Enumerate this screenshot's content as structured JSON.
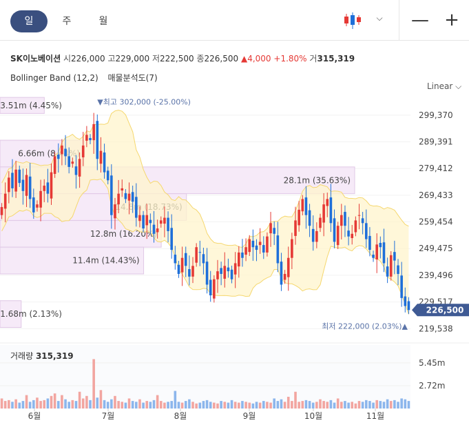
{
  "tabs": {
    "day": "일",
    "week": "주",
    "month": "월"
  },
  "icons": {
    "chart_type": "candlestick-icon",
    "dropdown": "chevron-down-icon",
    "zoom_out": "minus-icon",
    "zoom_in": "plus-icon"
  },
  "controls": {
    "zoom_out": "—",
    "zoom_in": "+",
    "chevron": "⌵"
  },
  "stock": {
    "name": "SK이노베이션",
    "open_label": "시",
    "open": "226,000",
    "high_label": "고",
    "high": "229,000",
    "low_label": "저",
    "low": "222,500",
    "close_label": "종",
    "close": "226,500",
    "change": "▲4,000",
    "change_pct": "+1.80%",
    "volume_label": "거",
    "volume": "315,319"
  },
  "indicators": {
    "bollinger": "Bollinger Band (12,2)",
    "volume_profile": "매물분석도(7)"
  },
  "scale_mode": "Linear ⌵",
  "colors": {
    "up": "#e53935",
    "down": "#1e6fd9",
    "band_fill": "#fff4cc",
    "band_line": "#f5d76e",
    "profile_fill": "#f4e6f7",
    "profile_line": "#e0c8e6",
    "price_tag": "#3f5a94"
  },
  "chart_data": {
    "type": "candlestick",
    "y_ticks": [
      299370,
      289391,
      279412,
      269433,
      259454,
      249475,
      239496,
      229517,
      219538
    ],
    "ylim": [
      216000,
      305000
    ],
    "x_labels": [
      "6월",
      "7월",
      "8월",
      "9월",
      "10월",
      "11월"
    ],
    "last_price": "226,500",
    "last_price_value": 226500,
    "high_marker": {
      "label": "▼최고 302,000 (-25.00%)",
      "value": 302000,
      "month_index": 1.1
    },
    "low_marker": {
      "label": "최저 222,000 (2.03%)▲",
      "value": 222000
    },
    "volume_profile": [
      {
        "low": 300000,
        "high": 306000,
        "label": "3.51m (4.45%)",
        "share": 4.45
      },
      {
        "low": 280000,
        "high": 290000,
        "label": "6.66m (8.44%)",
        "share": 8.44
      },
      {
        "low": 270000,
        "high": 280000,
        "label": "28.1m (35.63%)",
        "share": 35.63
      },
      {
        "low": 260000,
        "high": 270000,
        "label": "14.8m (18.73%)",
        "share": 18.73
      },
      {
        "low": 250000,
        "high": 260000,
        "label": "12.8m (16.20%)",
        "share": 16.2
      },
      {
        "low": 240000,
        "high": 250000,
        "label": "11.4m (14.43%)",
        "share": 14.43
      },
      {
        "low": 220000,
        "high": 230000,
        "label": "1.68m (2.13%)",
        "share": 2.13
      }
    ],
    "volume_title": "거래량",
    "volume_value": "315,319",
    "volume_ticks": [
      {
        "label": "5.45m",
        "value": 5450000
      },
      {
        "label": "2.72m",
        "value": 2720000
      }
    ],
    "volume_max": 6100000,
    "closes": [
      265000,
      270000,
      276000,
      272000,
      279000,
      274000,
      271000,
      277000,
      268000,
      263000,
      266000,
      271000,
      273000,
      270000,
      278000,
      284000,
      283000,
      288000,
      284000,
      280000,
      282000,
      277000,
      283000,
      288000,
      292000,
      290000,
      296000,
      283000,
      286000,
      278000,
      275000,
      262000,
      266000,
      270000,
      272000,
      268000,
      270000,
      267000,
      261000,
      262000,
      257000,
      262000,
      259000,
      255000,
      257000,
      260000,
      261000,
      256000,
      249000,
      244000,
      240000,
      246000,
      243000,
      239000,
      243000,
      250000,
      248000,
      244000,
      236000,
      232000,
      238000,
      241000,
      240000,
      243000,
      241000,
      238000,
      244000,
      248000,
      246000,
      250000,
      253000,
      250000,
      249000,
      252000,
      248000,
      254000,
      259000,
      255000,
      244000,
      236000,
      240000,
      246000,
      253000,
      260000,
      264000,
      268000,
      262000,
      258000,
      252000,
      256000,
      261000,
      266000,
      268000,
      259000,
      252000,
      258000,
      262000,
      258000,
      254000,
      255000,
      260000,
      262000,
      259000,
      253000,
      249000,
      246000,
      251000,
      250000,
      244000,
      239000,
      247000,
      245000,
      240000,
      231000,
      228000,
      226500
    ],
    "volumes": [
      1200000,
      900000,
      1000000,
      800000,
      1100000,
      700000,
      900000,
      1600000,
      800000,
      1000000,
      1300000,
      900000,
      1000000,
      1200000,
      1500000,
      1800000,
      900000,
      1600000,
      1100000,
      800000,
      1000000,
      900000,
      2000000,
      1200000,
      1500000,
      1000000,
      5900000,
      1300000,
      2200000,
      1000000,
      800000,
      1100000,
      1500000,
      900000,
      800000,
      700000,
      1200000,
      900000,
      800000,
      1100000,
      700000,
      900000,
      800000,
      1000000,
      1600000,
      900000,
      700000,
      800000,
      900000,
      2100000,
      800000,
      700000,
      900000,
      1100000,
      800000,
      600000,
      700000,
      900000,
      1000000,
      800000,
      700000,
      600000,
      900000,
      800000,
      700000,
      1000000,
      800000,
      700000,
      900000,
      800000,
      700000,
      600000,
      800000,
      700000,
      900000,
      800000,
      700000,
      1200000,
      900000,
      1100000,
      800000,
      1400000,
      900000,
      2000000,
      800000,
      900000,
      1000000,
      900000,
      700000,
      800000,
      1100000,
      900000,
      800000,
      1000000,
      700000,
      1200000,
      800000,
      900000,
      700000,
      800000,
      600000,
      900000,
      800000,
      1000000,
      900000,
      700000,
      1000000,
      900000,
      800000,
      1100000,
      900000,
      1000000,
      800000,
      1200000,
      1100000,
      900000
    ]
  }
}
